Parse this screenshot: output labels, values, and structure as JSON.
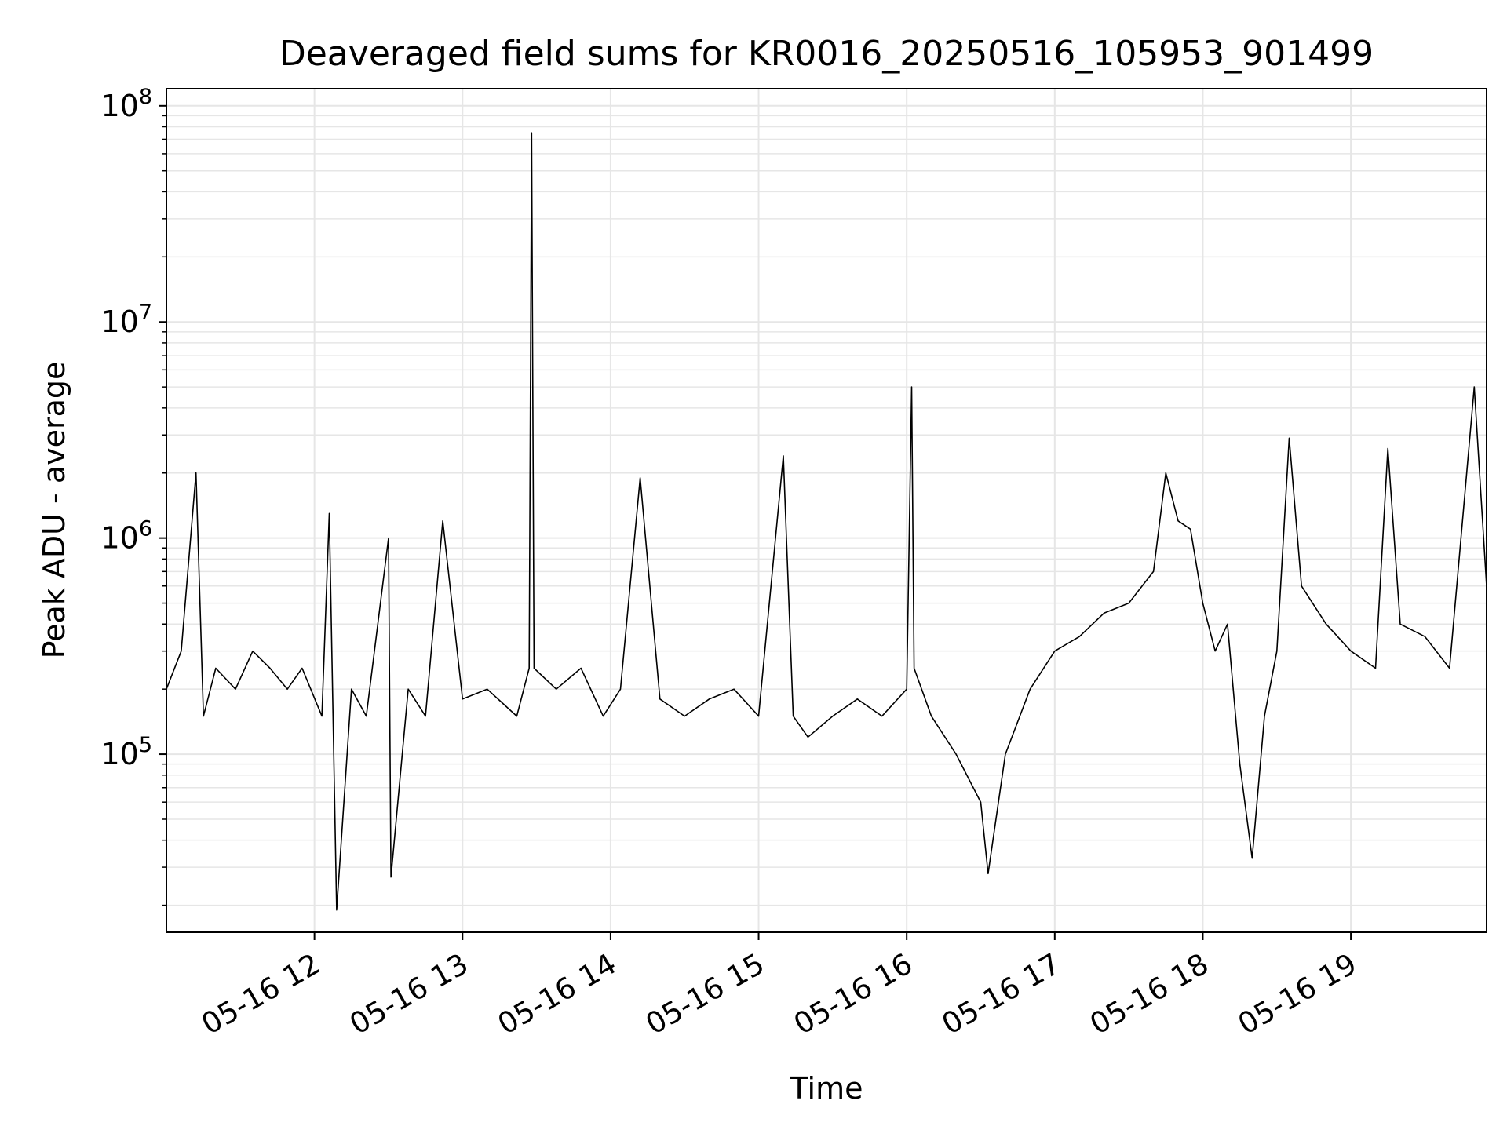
{
  "chart_data": {
    "type": "line",
    "title": "Deaveraged field sums for KR0016_20250516_105953_901499",
    "xlabel": "Time",
    "ylabel": "Peak ADU - average",
    "y_scale": "log",
    "ylim": [
      15000,
      120000000
    ],
    "xlim": [
      "2025-05-16 11:00",
      "2025-05-16 19:55"
    ],
    "x_ticks": [
      "2025-05-16 12:00",
      "2025-05-16 13:00",
      "2025-05-16 14:00",
      "2025-05-16 15:00",
      "2025-05-16 16:00",
      "2025-05-16 17:00",
      "2025-05-16 18:00",
      "2025-05-16 19:00"
    ],
    "x_tick_labels": [
      "05-16 12",
      "05-16 13",
      "05-16 14",
      "05-16 15",
      "05-16 16",
      "05-16 17",
      "05-16 18",
      "05-16 19"
    ],
    "y_ticks": [
      100000,
      1000000,
      10000000,
      100000000
    ],
    "y_tick_labels": [
      {
        "base": "10",
        "exp": "5"
      },
      {
        "base": "10",
        "exp": "6"
      },
      {
        "base": "10",
        "exp": "7"
      },
      {
        "base": "10",
        "exp": "8"
      }
    ],
    "grid": true,
    "line_color": "#000000",
    "grid_color": "#e6e6e6",
    "series": [
      {
        "x": [
          "2025-05-16 11:00",
          "2025-05-16 11:06",
          "2025-05-16 11:12",
          "2025-05-16 11:15",
          "2025-05-16 11:20",
          "2025-05-16 11:28",
          "2025-05-16 11:35",
          "2025-05-16 11:42",
          "2025-05-16 11:49",
          "2025-05-16 11:55",
          "2025-05-16 12:03",
          "2025-05-16 12:06",
          "2025-05-16 12:09",
          "2025-05-16 12:15",
          "2025-05-16 12:21",
          "2025-05-16 12:30",
          "2025-05-16 12:31",
          "2025-05-16 12:38",
          "2025-05-16 12:45",
          "2025-05-16 12:52",
          "2025-05-16 13:00",
          "2025-05-16 13:10",
          "2025-05-16 13:22",
          "2025-05-16 13:27",
          "2025-05-16 13:28",
          "2025-05-16 13:29",
          "2025-05-16 13:38",
          "2025-05-16 13:48",
          "2025-05-16 13:57",
          "2025-05-16 14:04",
          "2025-05-16 14:12",
          "2025-05-16 14:20",
          "2025-05-16 14:30",
          "2025-05-16 14:40",
          "2025-05-16 14:50",
          "2025-05-16 15:00",
          "2025-05-16 15:10",
          "2025-05-16 15:14",
          "2025-05-16 15:20",
          "2025-05-16 15:30",
          "2025-05-16 15:40",
          "2025-05-16 15:50",
          "2025-05-16 16:00",
          "2025-05-16 16:02",
          "2025-05-16 16:03",
          "2025-05-16 16:10",
          "2025-05-16 16:20",
          "2025-05-16 16:30",
          "2025-05-16 16:33",
          "2025-05-16 16:40",
          "2025-05-16 16:50",
          "2025-05-16 17:00",
          "2025-05-16 17:10",
          "2025-05-16 17:20",
          "2025-05-16 17:30",
          "2025-05-16 17:40",
          "2025-05-16 17:45",
          "2025-05-16 17:50",
          "2025-05-16 17:55",
          "2025-05-16 18:00",
          "2025-05-16 18:05",
          "2025-05-16 18:10",
          "2025-05-16 18:15",
          "2025-05-16 18:20",
          "2025-05-16 18:25",
          "2025-05-16 18:30",
          "2025-05-16 18:35",
          "2025-05-16 18:40",
          "2025-05-16 18:50",
          "2025-05-16 19:00",
          "2025-05-16 19:10",
          "2025-05-16 19:15",
          "2025-05-16 19:20",
          "2025-05-16 19:30",
          "2025-05-16 19:40",
          "2025-05-16 19:50",
          "2025-05-16 19:55"
        ],
        "y": [
          200000,
          300000,
          2000000,
          150000,
          250000,
          200000,
          300000,
          250000,
          200000,
          250000,
          150000,
          1300000,
          19000,
          200000,
          150000,
          1000000,
          27000,
          200000,
          150000,
          1200000,
          180000,
          200000,
          150000,
          250000,
          75000000,
          250000,
          200000,
          250000,
          150000,
          200000,
          1900000,
          180000,
          150000,
          180000,
          200000,
          150000,
          2400000,
          150000,
          120000,
          150000,
          180000,
          150000,
          200000,
          5000000,
          250000,
          150000,
          100000,
          60000,
          28000,
          100000,
          200000,
          300000,
          350000,
          450000,
          500000,
          700000,
          2000000,
          1200000,
          1100000,
          500000,
          300000,
          400000,
          90000,
          33000,
          150000,
          300000,
          2900000,
          600000,
          400000,
          300000,
          250000,
          2600000,
          400000,
          350000,
          250000,
          5000000,
          600000
        ]
      }
    ]
  }
}
